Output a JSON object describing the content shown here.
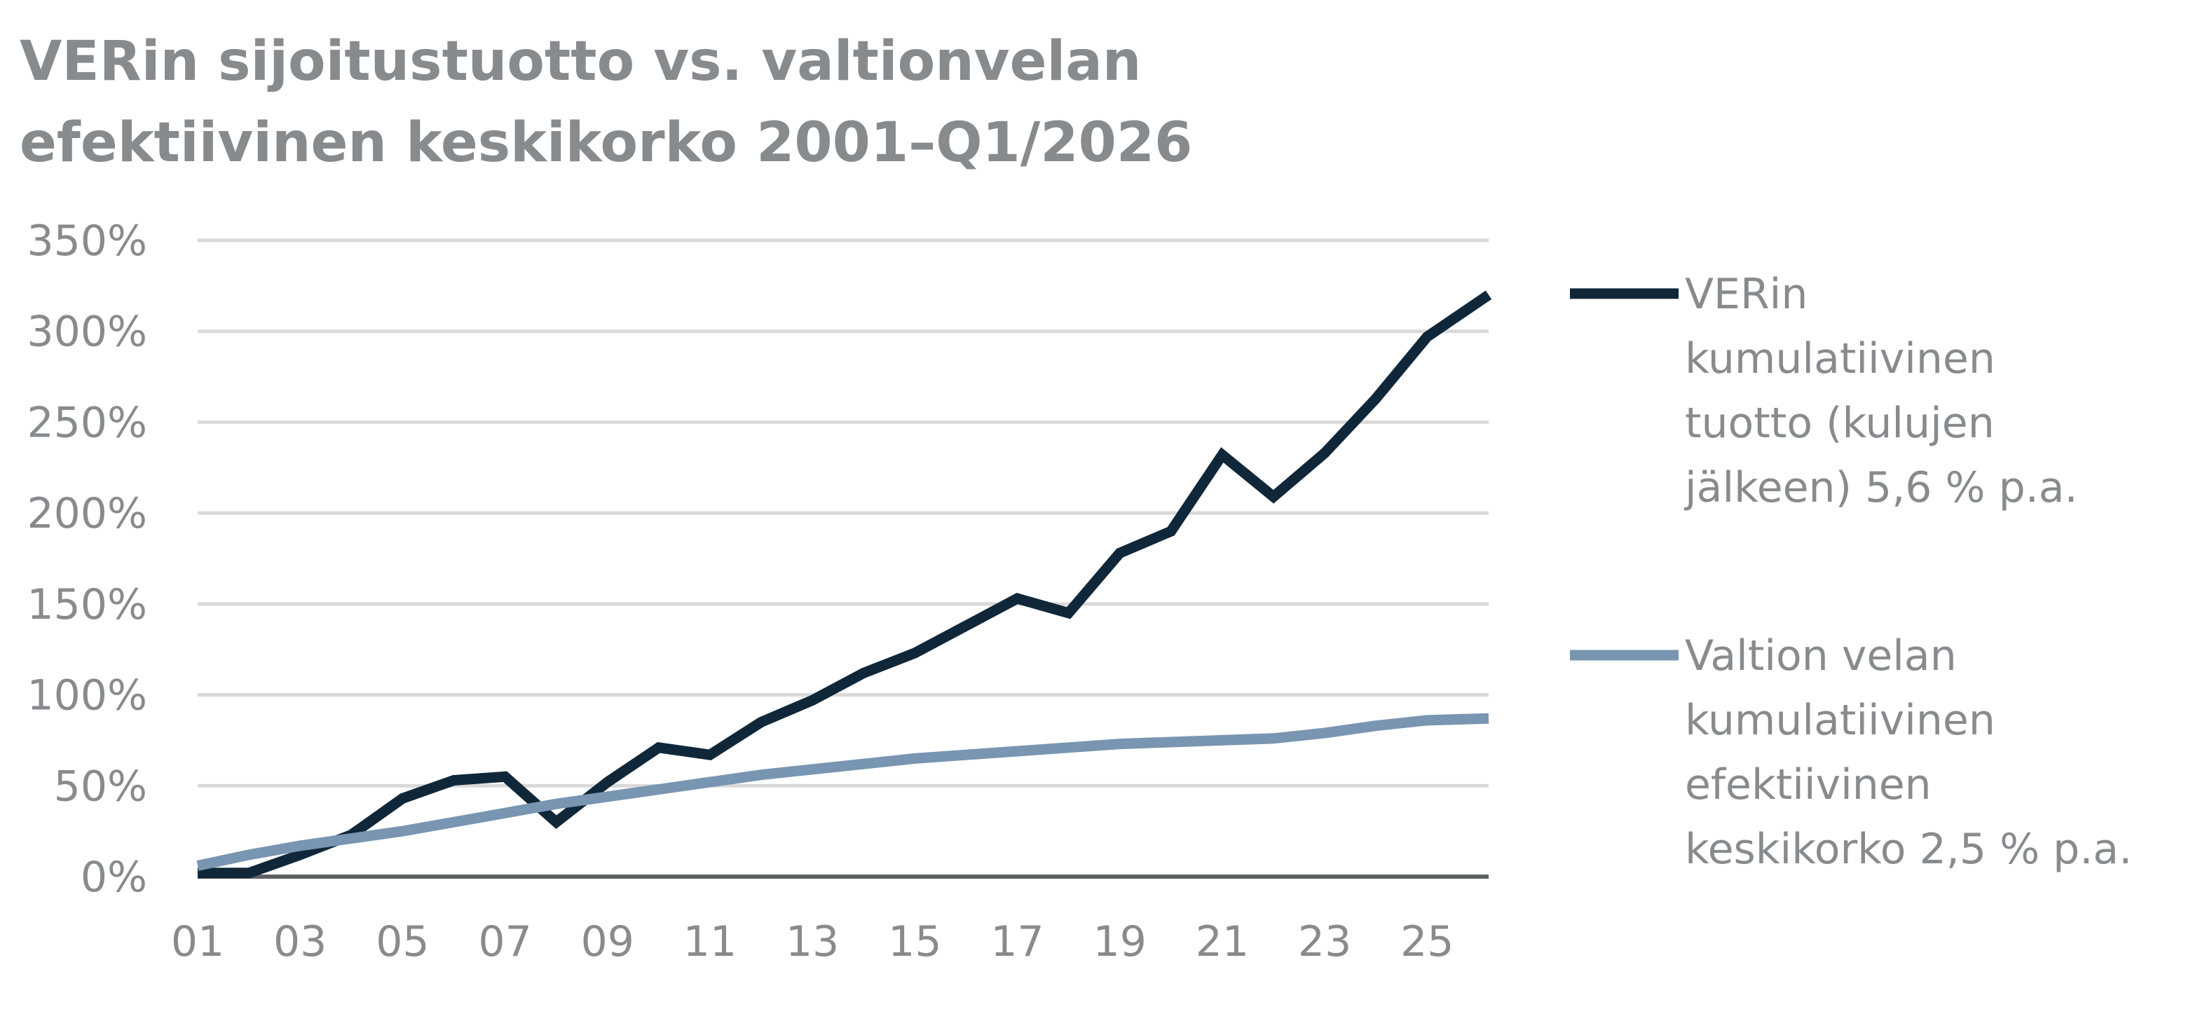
{
  "chart_data": {
    "type": "line",
    "title": "VERin sijoitustuotto vs. valtionvelan efektiivinen keskikorko 2001–Q1/2026",
    "xlabel": "",
    "ylabel": "",
    "x": [
      2001,
      2002,
      2003,
      2004,
      2005,
      2006,
      2007,
      2008,
      2009,
      2010,
      2011,
      2012,
      2013,
      2014,
      2015,
      2016,
      2017,
      2018,
      2019,
      2020,
      2021,
      2022,
      2023,
      2024,
      2025,
      2026.2
    ],
    "x_ticks": [
      2001,
      2003,
      2005,
      2007,
      2009,
      2011,
      2013,
      2015,
      2017,
      2019,
      2021,
      2023,
      2025
    ],
    "x_tick_labels": [
      "01",
      "03",
      "05",
      "07",
      "09",
      "11",
      "13",
      "15",
      "17",
      "19",
      "21",
      "23",
      "25"
    ],
    "ylim": [
      0,
      350
    ],
    "y_ticks": [
      0,
      50,
      100,
      150,
      200,
      250,
      300,
      350
    ],
    "y_tick_labels": [
      "0%",
      "50%",
      "100%",
      "150%",
      "200%",
      "250%",
      "300%",
      "350%"
    ],
    "grid": true,
    "legend_position": "right",
    "series": [
      {
        "name": "VERin kumulatiivinen tuotto (kulujen jälkeen) 5,6 % p.a.",
        "legend_lines": [
          "VERin",
          "kumulatiivinen",
          "tuotto (kulujen",
          "jälkeen) 5,6 % p.a."
        ],
        "color": "#10273a",
        "values": [
          2,
          2,
          12,
          23,
          43,
          53,
          55,
          30,
          52,
          71,
          67,
          85,
          97,
          112,
          123,
          138,
          153,
          145,
          178,
          190,
          232,
          209,
          233,
          263,
          297,
          320
        ]
      },
      {
        "name": "Valtion velan kumulatiivinen efektiivinen keskikorko 2,5 % p.a.",
        "legend_lines": [
          "Valtion velan",
          "kumulatiivinen",
          "efektiivinen",
          "keskikorko 2,5 % p.a."
        ],
        "color": "#7895b2",
        "values": [
          6,
          12,
          17,
          21,
          25,
          30,
          35,
          40,
          44,
          48,
          52,
          56,
          59,
          62,
          65,
          67,
          69,
          71,
          73,
          74,
          75,
          76,
          79,
          83,
          86,
          87
        ]
      }
    ]
  }
}
